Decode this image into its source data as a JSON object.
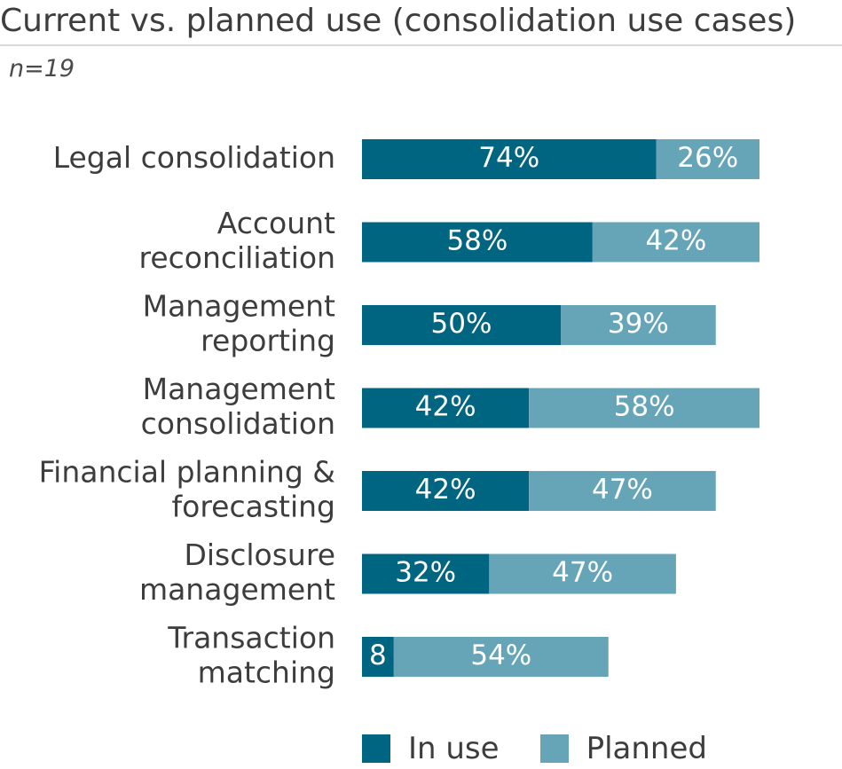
{
  "title": "Current vs. planned use (consolidation use cases)",
  "subtitle": "n=19",
  "colors": {
    "in_use": "#006580",
    "planned": "#66a5b7"
  },
  "chart_data": {
    "type": "bar",
    "orientation": "horizontal",
    "stacked": true,
    "categories": [
      [
        "Legal consolidation"
      ],
      [
        "Account",
        "reconciliation"
      ],
      [
        "Management",
        "reporting"
      ],
      [
        "Management",
        "consolidation"
      ],
      [
        "Financial planning &",
        "forecasting"
      ],
      [
        "Disclosure",
        "management"
      ],
      [
        "Transaction",
        "matching"
      ]
    ],
    "series": [
      {
        "name": "In use",
        "values": [
          74,
          58,
          50,
          42,
          42,
          32,
          8
        ],
        "labels": [
          "74%",
          "58%",
          "50%",
          "42%",
          "42%",
          "32%",
          "8"
        ]
      },
      {
        "name": "Planned",
        "values": [
          26,
          42,
          39,
          58,
          47,
          47,
          54
        ],
        "labels": [
          "26%",
          "42%",
          "39%",
          "58%",
          "47%",
          "47%",
          "54%"
        ]
      }
    ],
    "xlim": [
      0,
      100
    ],
    "grid": false,
    "legend_position": "bottom"
  }
}
